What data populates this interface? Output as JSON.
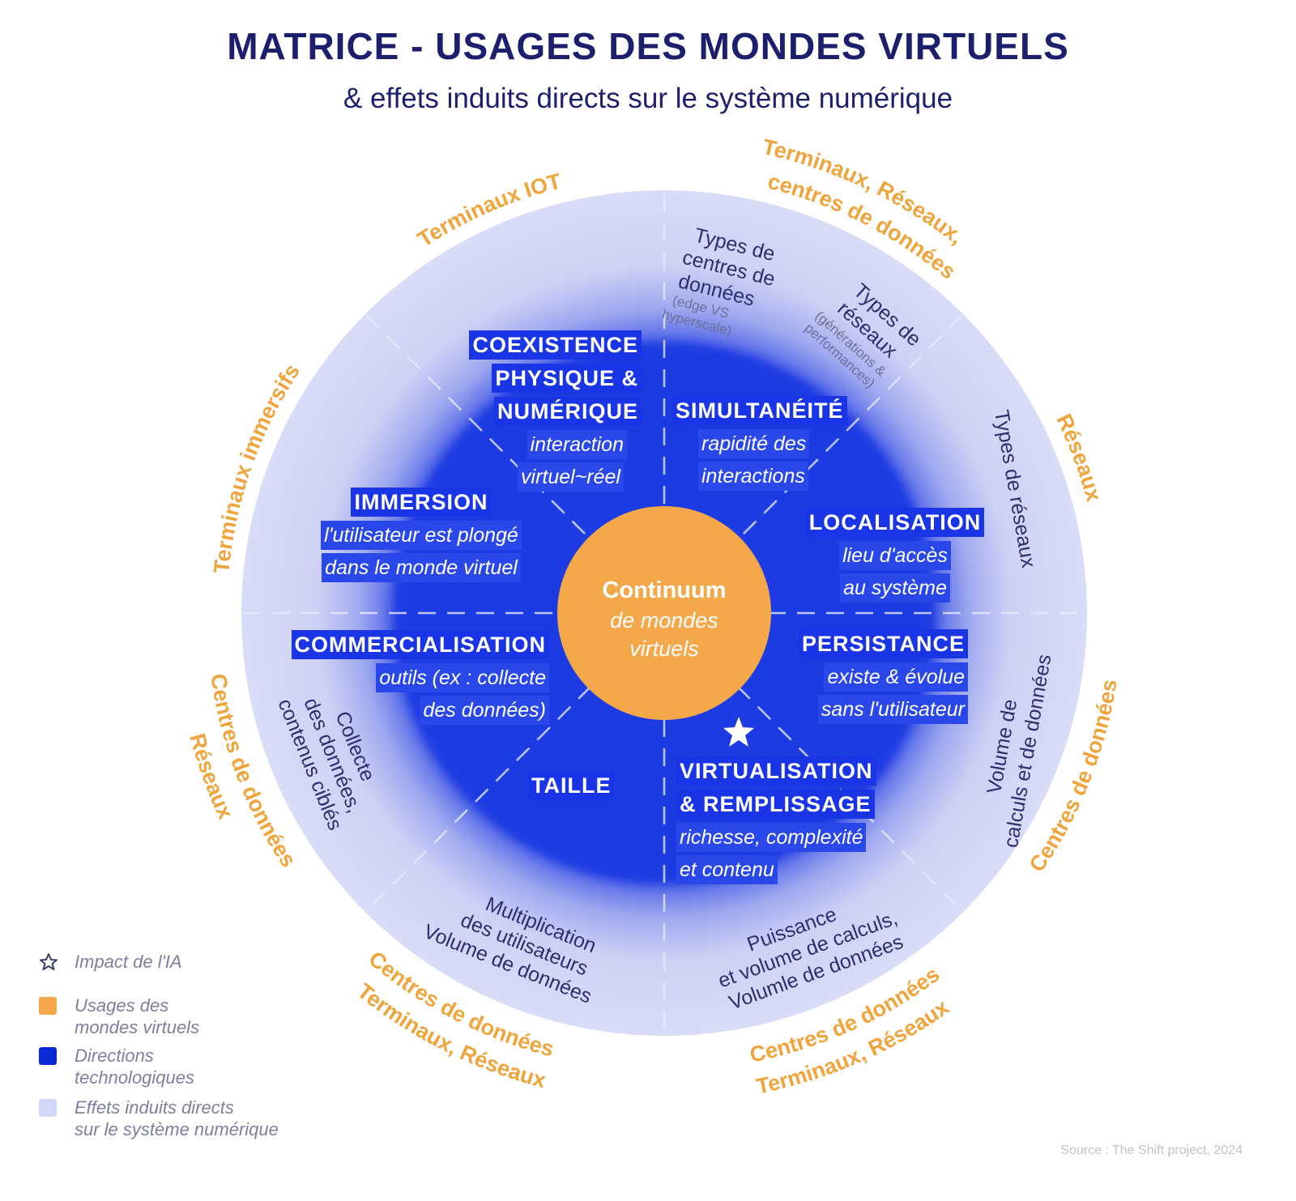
{
  "title": "MATRICE - USAGES DES MONDES VIRTUELS",
  "subtitle": "& effets induits directs sur le système numérique",
  "colors": {
    "title": "#1b1f6e",
    "usages": "#f5a84a",
    "directions": "#1e3be2",
    "effets": "#d3d7f5",
    "orange_text": "#f0a43c"
  },
  "center": {
    "line1": "Continuum",
    "line2": "de mondes",
    "line3": "virtuels"
  },
  "directions": {
    "coexistence": {
      "h1": "COEXISTENCE",
      "h2": "PHYSIQUE &",
      "h3": "NUMÉRIQUE",
      "s1": "interaction",
      "s2": "virtuel~réel"
    },
    "simultaneite": {
      "h1": "SIMULTANÉITÉ",
      "s1": "rapidité des",
      "s2": "interactions"
    },
    "immersion": {
      "h1": "IMMERSION",
      "s1": "l'utilisateur est plongé",
      "s2": "dans le monde virtuel"
    },
    "localisation": {
      "h1": "LOCALISATION",
      "s1": "lieu d'accès",
      "s2": "au système"
    },
    "commercialisation": {
      "h1": "COMMERCIALISATION",
      "s1": "outils (ex : collecte",
      "s2": "des données)"
    },
    "persistance": {
      "h1": "PERSISTANCE",
      "s1": "existe & évolue",
      "s2": "sans l'utilisateur"
    },
    "taille": {
      "h1": "TAILLE"
    },
    "virtualisation": {
      "h1": "VIRTUALISATION",
      "h2": "& REMPLISSAGE",
      "s1": "richesse, complexité",
      "s2": "et contenu"
    }
  },
  "effets": {
    "types_centres": {
      "l1": "Types de",
      "l2": "centres de",
      "l3": "données",
      "s1": "(edge VS",
      "s2": "hyperscale)"
    },
    "types_reseaux_top": {
      "l1": "Types de",
      "l2": "réseaux",
      "s1": "(générations &",
      "s2": "performances)"
    },
    "types_reseaux_right": "Types de réseaux",
    "volume": {
      "l1": "Volume de",
      "l2": "calculs et de données"
    },
    "collecte": {
      "l1": "Collecte",
      "l2": "des données,",
      "l3": "contenus ciblés"
    },
    "multiplication": {
      "l1": "Multiplication",
      "l2": "des utilisateurs",
      "l3": "Volume de données"
    },
    "puissance": {
      "l1": "Puissance",
      "l2": "et volume de calculs,",
      "l3": "Volumle de données"
    }
  },
  "outer": {
    "iot": "Terminaux IOT",
    "top_right_1": "Terminaux, Réseaux,",
    "top_right_2": "centres de données",
    "reseaux_right": "Réseaux",
    "immersifs": "Terminaux immersifs",
    "left_1": "Centres de données",
    "left_2": "Réseaux",
    "bottom_left_1": "Centres de données",
    "bottom_left_2": "Terminaux, Réseaux",
    "bottom_right_1": "Centres de données",
    "bottom_right_2": "Terminaux, Réseaux",
    "right_low": "Centres de données"
  },
  "legend": {
    "impact": "Impact de l'IA",
    "usages_1": "Usages des",
    "usages_2": "mondes virtuels",
    "directions_1": "Directions",
    "directions_2": "technologiques",
    "effets_1": "Effets induits directs",
    "effets_2": "sur le système numérique"
  },
  "source": "Source : The Shift project, 2024"
}
